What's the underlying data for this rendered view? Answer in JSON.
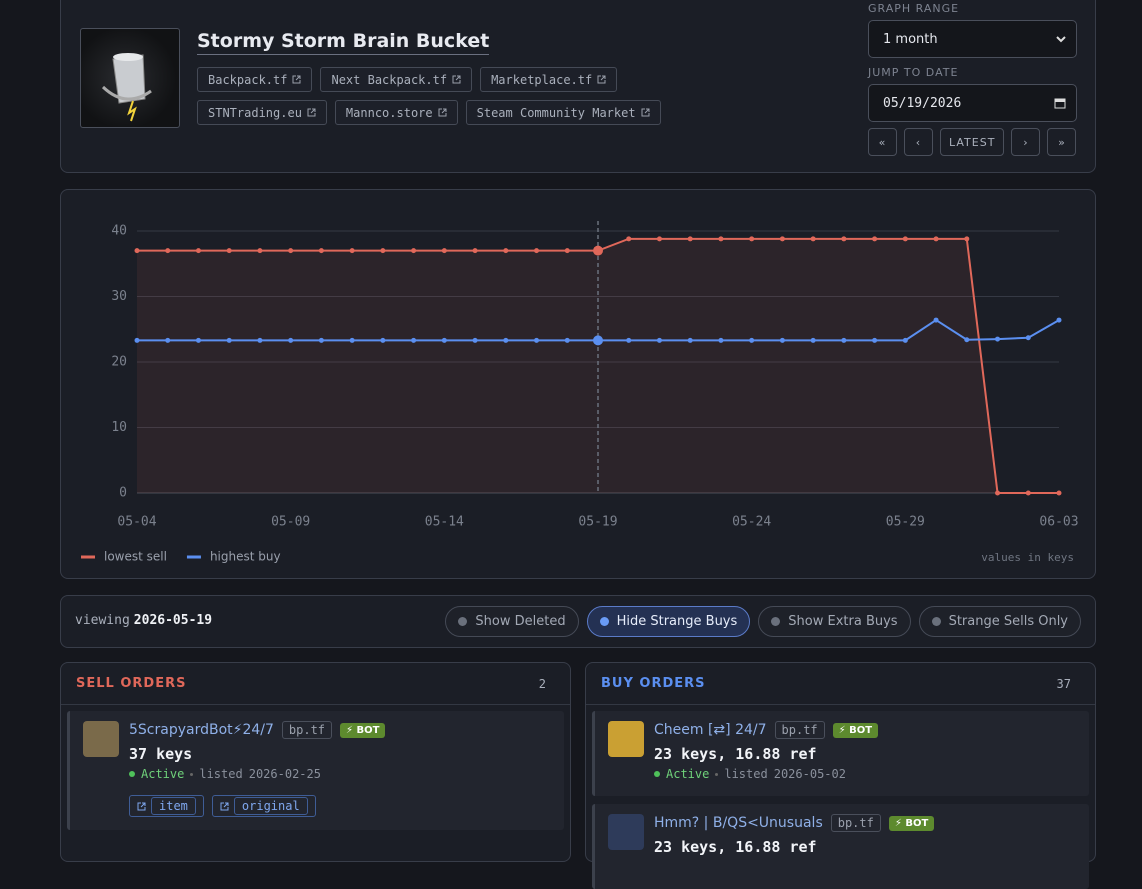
{
  "header": {
    "title": "Stormy Storm Brain Bucket",
    "links": [
      "Backpack.tf",
      "Next Backpack.tf",
      "Marketplace.tf",
      "STNTrading.eu",
      "Mannco.store",
      "Steam Community Market"
    ],
    "graph_range_label": "GRAPH RANGE",
    "graph_range": "1 month",
    "jump_label": "JUMP TO DATE",
    "date": "05/19/2026",
    "nav": [
      "«",
      "‹",
      "LATEST",
      "›",
      "»"
    ]
  },
  "chart_data": {
    "type": "line",
    "categories": [
      "05-04",
      null,
      null,
      null,
      null,
      "05-09",
      null,
      null,
      null,
      null,
      "05-14",
      null,
      null,
      null,
      null,
      "05-19",
      null,
      null,
      null,
      null,
      "05-24",
      null,
      null,
      null,
      null,
      "05-29",
      null,
      null,
      null,
      null,
      "06-03"
    ],
    "series": [
      {
        "name": "lowest sell",
        "color": "#e0685a",
        "values": [
          37,
          37,
          37,
          37,
          37,
          37,
          37,
          37,
          37,
          37,
          37,
          37,
          37,
          37,
          37,
          37,
          38.8,
          38.8,
          38.8,
          38.8,
          38.8,
          38.8,
          38.8,
          38.8,
          38.8,
          38.8,
          38.8,
          38.8,
          0,
          0,
          0
        ]
      },
      {
        "name": "highest buy",
        "color": "#5b8ff0",
        "values": [
          23.3,
          23.3,
          23.3,
          23.3,
          23.3,
          23.3,
          23.3,
          23.3,
          23.3,
          23.3,
          23.3,
          23.3,
          23.3,
          23.3,
          23.3,
          23.3,
          23.3,
          23.3,
          23.3,
          23.3,
          23.3,
          23.3,
          23.3,
          23.3,
          23.3,
          23.3,
          26.4,
          23.4,
          23.5,
          23.7,
          26.4
        ]
      }
    ],
    "ylim": [
      0,
      40
    ],
    "yticks": [
      0,
      10,
      20,
      30,
      40
    ],
    "grid": true,
    "legend": "bottom-left",
    "note": "values in keys"
  },
  "toolbar": {
    "viewing_label": "viewing",
    "viewing_date": "2026-05-19",
    "filters": [
      {
        "label": "Show Deleted",
        "active": false
      },
      {
        "label": "Hide Strange Buys",
        "active": true
      },
      {
        "label": "Show Extra Buys",
        "active": false
      },
      {
        "label": "Strange Sells Only",
        "active": false
      }
    ]
  },
  "sell_orders": {
    "title": "SELL ORDERS",
    "count": 2,
    "orders": [
      {
        "name": "5ScrapyardBot⚡24/7",
        "source": "bp.tf",
        "badge": "⚡ BOT",
        "price": "37 keys",
        "status": "Active",
        "listed_label": "listed",
        "listed": "2026-02-25",
        "links": [
          "item",
          "original"
        ]
      }
    ]
  },
  "buy_orders": {
    "title": "BUY ORDERS",
    "count": 37,
    "orders": [
      {
        "name": "Cheem [⇄] 24/7",
        "source": "bp.tf",
        "badge": "⚡ BOT",
        "price": "23 keys, 16.88 ref",
        "status": "Active",
        "listed_label": "listed",
        "listed": "2026-05-02"
      },
      {
        "name": "Hmm? | B/QS<Unusuals",
        "source": "bp.tf",
        "badge": "⚡ BOT",
        "price": "23 keys, 16.88 ref"
      }
    ]
  }
}
